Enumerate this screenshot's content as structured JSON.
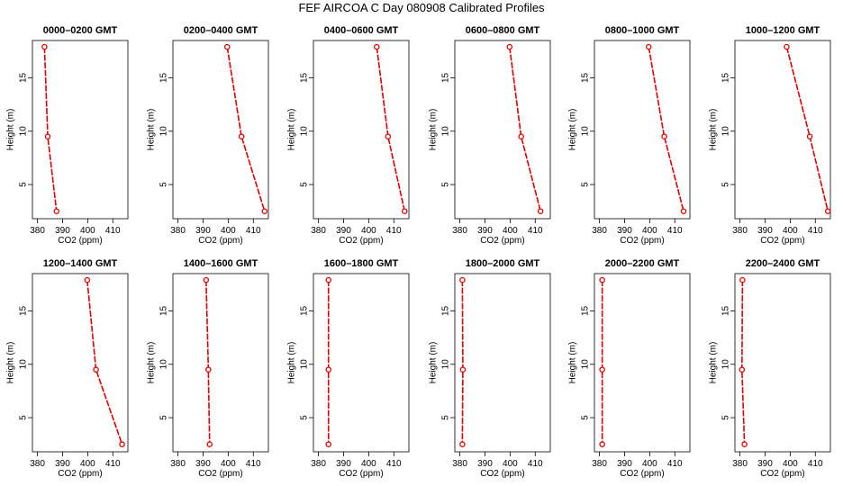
{
  "title": "FEF AIRCOA C  Day 080908  Calibrated Profiles",
  "chart_data": {
    "type": "line",
    "xlabel": "CO2 (ppm)",
    "ylabel": "Height (m)",
    "xlim": [
      378,
      416
    ],
    "ylim": [
      1.8,
      18.5
    ],
    "xticks": [
      380,
      390,
      400,
      410
    ],
    "yticks": [
      5,
      10,
      15
    ],
    "heights": [
      17.9,
      9.5,
      2.5
    ],
    "line_color": "#e00000",
    "panels": [
      {
        "title": "0000–0200 GMT",
        "co2": [
          382.8,
          384.1,
          387.6
        ]
      },
      {
        "title": "0200–0400 GMT",
        "co2": [
          399.6,
          405.3,
          414.5
        ]
      },
      {
        "title": "0400–0600 GMT",
        "co2": [
          403.2,
          407.7,
          414.3
        ]
      },
      {
        "title": "0600–0800 GMT",
        "co2": [
          399.8,
          404.4,
          412.1
        ]
      },
      {
        "title": "0800–1000 GMT",
        "co2": [
          399.6,
          405.8,
          413.5
        ]
      },
      {
        "title": "1000–1200 GMT",
        "co2": [
          398.6,
          407.8,
          415.0
        ]
      },
      {
        "title": "1200–1400 GMT",
        "co2": [
          399.8,
          403.3,
          413.7
        ]
      },
      {
        "title": "1400–1600 GMT",
        "co2": [
          391.2,
          392.1,
          392.6
        ]
      },
      {
        "title": "1600–1800 GMT",
        "co2": [
          384.0,
          384.0,
          384.0
        ]
      },
      {
        "title": "1800–2000 GMT",
        "co2": [
          381.0,
          381.2,
          381.0
        ]
      },
      {
        "title": "2000–2200 GMT",
        "co2": [
          381.1,
          381.1,
          381.1
        ]
      },
      {
        "title": "2200–2400 GMT",
        "co2": [
          381.0,
          380.8,
          381.8
        ]
      }
    ]
  }
}
